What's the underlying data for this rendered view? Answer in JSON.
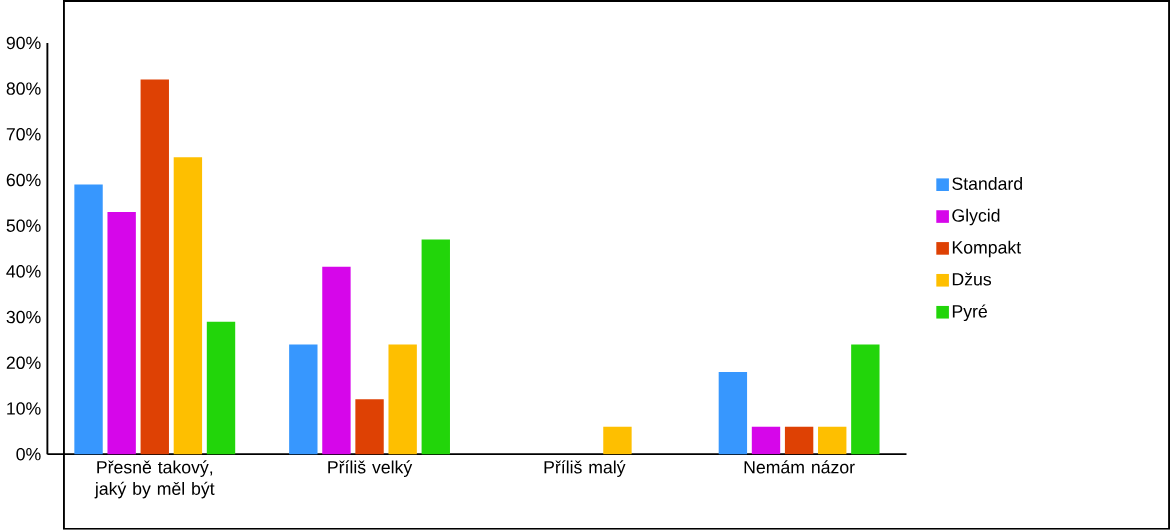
{
  "chart_data": {
    "type": "bar",
    "categories": [
      "Přesně takový, jaký by měl být",
      "Příliš velký",
      "Příliš malý",
      "Nemám názor"
    ],
    "series": [
      {
        "name": "Standard",
        "color": "#3797fe",
        "values": [
          59,
          24,
          0,
          18
        ]
      },
      {
        "name": "Glycid",
        "color": "#d606ea",
        "values": [
          53,
          41,
          0,
          6
        ]
      },
      {
        "name": "Kompakt",
        "color": "#de4104",
        "values": [
          82,
          12,
          0,
          6
        ]
      },
      {
        "name": "Džus",
        "color": "#febf00",
        "values": [
          65,
          24,
          6,
          6
        ]
      },
      {
        "name": "Pyré",
        "color": "#22d50a",
        "values": [
          29,
          47,
          0,
          24
        ]
      }
    ],
    "ylim": [
      0,
      90
    ],
    "yticks": [
      {
        "value": 0,
        "label": "0%"
      },
      {
        "value": 10,
        "label": "10%"
      },
      {
        "value": 20,
        "label": "20%"
      },
      {
        "value": 30,
        "label": "30%"
      },
      {
        "value": 40,
        "label": "40%"
      },
      {
        "value": 50,
        "label": "50%"
      },
      {
        "value": 60,
        "label": "60%"
      },
      {
        "value": 70,
        "label": "70%"
      },
      {
        "value": 80,
        "label": "80%"
      },
      {
        "value": 90,
        "label": "90%"
      }
    ],
    "grid": false,
    "legend": "right"
  }
}
